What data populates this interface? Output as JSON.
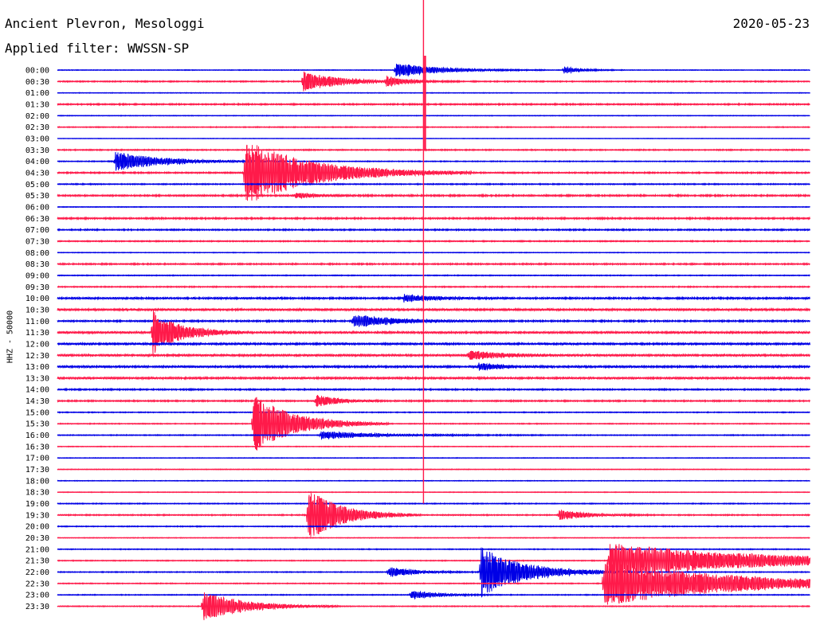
{
  "header": {
    "station": "Ancient Plevron, Mesologgi",
    "filter_text": "Applied filter: WWSSN-SP",
    "date": "2020-05-23",
    "channel_label": "HHZ - 50000"
  },
  "colors": {
    "even_trace": "#0000e6",
    "odd_trace": "#ff1a4a",
    "background": "#ffffff"
  },
  "chart_data": {
    "type": "line",
    "title": "Ancient Plevron, Mesologgi",
    "subtitle": "Applied filter: WWSSN-SP",
    "ylabel": "HHZ - 50000",
    "xlabel": "",
    "row_interval_minutes": 30,
    "grid": false,
    "tick_labels": [
      "00:00",
      "00:30",
      "01:00",
      "01:30",
      "02:00",
      "02:30",
      "03:00",
      "03:30",
      "04:00",
      "04:30",
      "05:00",
      "05:30",
      "06:00",
      "06:30",
      "07:00",
      "07:30",
      "08:00",
      "08:30",
      "09:00",
      "09:30",
      "10:00",
      "10:30",
      "11:00",
      "11:30",
      "12:00",
      "12:30",
      "13:00",
      "13:30",
      "14:00",
      "14:30",
      "15:00",
      "15:30",
      "16:00",
      "16:30",
      "17:00",
      "17:30",
      "18:00",
      "18:30",
      "19:00",
      "19:30",
      "20:00",
      "20:30",
      "21:00",
      "21:30",
      "22:00",
      "22:30",
      "23:00",
      "23:30"
    ],
    "noise_level": [
      0.3,
      0.5,
      0.3,
      0.6,
      0.3,
      0.4,
      0.2,
      0.5,
      0.4,
      0.6,
      0.5,
      0.7,
      0.3,
      0.7,
      0.6,
      0.5,
      0.3,
      0.6,
      0.4,
      0.5,
      0.8,
      0.9,
      0.7,
      0.9,
      0.9,
      0.9,
      0.9,
      0.9,
      0.6,
      0.6,
      0.4,
      0.4,
      0.4,
      0.3,
      0.3,
      0.3,
      0.3,
      0.3,
      0.4,
      0.5,
      0.4,
      0.3,
      0.4,
      0.4,
      0.4,
      0.4,
      0.4,
      0.4
    ],
    "events": [
      {
        "row": 0,
        "minute": 13.5,
        "amplitude": 8,
        "duration": 2.0
      },
      {
        "row": 0,
        "minute": 20.2,
        "amplitude": 4,
        "duration": 0.8
      },
      {
        "row": 1,
        "minute": 13.1,
        "amplitude": 5,
        "duration": 1.0
      },
      {
        "row": 1,
        "minute": 9.8,
        "amplitude": 12,
        "duration": 1.6
      },
      {
        "row": 8,
        "minute": 2.3,
        "amplitude": 11,
        "duration": 2.2
      },
      {
        "row": 9,
        "minute": 7.5,
        "amplitude": 38,
        "duration": 3.0
      },
      {
        "row": 11,
        "minute": 9.5,
        "amplitude": 3,
        "duration": 1.0
      },
      {
        "row": 20,
        "minute": 13.8,
        "amplitude": 4,
        "duration": 1.5
      },
      {
        "row": 22,
        "minute": 11.8,
        "amplitude": 7,
        "duration": 2.0
      },
      {
        "row": 23,
        "minute": 3.8,
        "amplitude": 26,
        "duration": 1.2
      },
      {
        "row": 25,
        "minute": 16.4,
        "amplitude": 5,
        "duration": 1.5
      },
      {
        "row": 26,
        "minute": 16.8,
        "amplitude": 4,
        "duration": 1.0
      },
      {
        "row": 29,
        "minute": 10.3,
        "amplitude": 7,
        "duration": 1.0
      },
      {
        "row": 31,
        "minute": 7.8,
        "amplitude": 34,
        "duration": 1.8
      },
      {
        "row": 32,
        "minute": 10.5,
        "amplitude": 4,
        "duration": 3.0
      },
      {
        "row": 39,
        "minute": 10.0,
        "amplitude": 30,
        "duration": 1.5
      },
      {
        "row": 39,
        "minute": 20.0,
        "amplitude": 6,
        "duration": 1.2
      },
      {
        "row": 43,
        "minute": 22.0,
        "amplitude": 20,
        "duration": 7.0
      },
      {
        "row": 44,
        "minute": 16.9,
        "amplitude": 28,
        "duration": 2.0
      },
      {
        "row": 44,
        "minute": 13.2,
        "amplitude": 6,
        "duration": 1.2
      },
      {
        "row": 45,
        "minute": 21.8,
        "amplitude": 26,
        "duration": 6.0
      },
      {
        "row": 46,
        "minute": 14.1,
        "amplitude": 5,
        "duration": 1.2
      },
      {
        "row": 47,
        "minute": 5.8,
        "amplitude": 18,
        "duration": 1.8
      }
    ],
    "glitch": {
      "start_row": 0,
      "end_row": 38,
      "minute": 14.6
    }
  }
}
